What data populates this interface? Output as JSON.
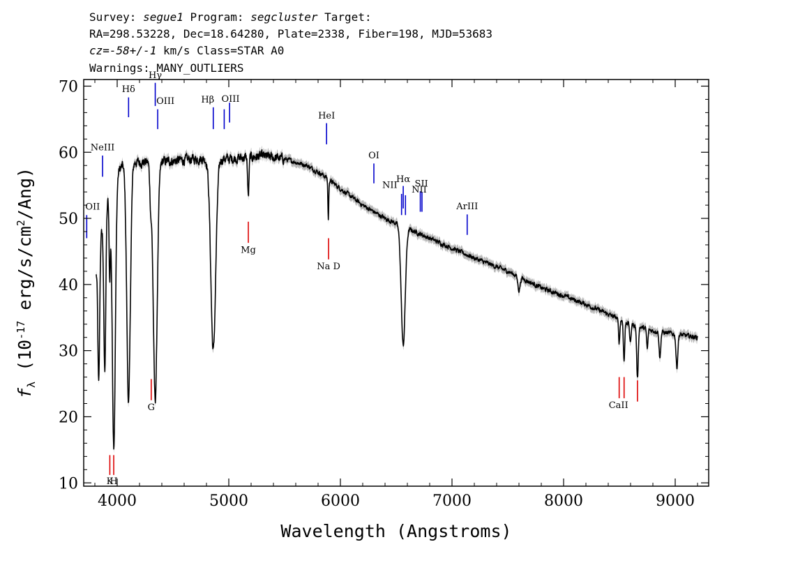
{
  "header": {
    "line1": {
      "survey_label": "Survey: ",
      "survey": "segue1",
      "program_label": " Program: ",
      "program": "segcluster",
      "target_label": " Target:"
    },
    "line2": "RA=298.53228, Dec=18.64280, Plate=2338, Fiber=198, MJD=53683",
    "line3": {
      "cz": "cz=-58+/-1",
      "rest": " km/s Class=STAR A0"
    },
    "line4": "Warnings: MANY_OUTLIERS"
  },
  "chart_data": {
    "type": "line",
    "xlabel": "Wavelength (Angstroms)",
    "ylabel_prefix": "f",
    "ylabel_sub": "λ",
    "ylabel_mid": " (10",
    "ylabel_exp1": "-17",
    "ylabel_tail": " erg/s/cm",
    "ylabel_exp2": "2",
    "ylabel_end": "/Ang)",
    "xlim": [
      3700,
      9300
    ],
    "ylim": [
      9.5,
      71
    ],
    "xticks": [
      4000,
      5000,
      6000,
      7000,
      8000,
      9000
    ],
    "yticks": [
      10,
      20,
      30,
      40,
      50,
      60,
      70
    ],
    "colors": {
      "spectrum": "#000000",
      "error_band": "#b8b8b8",
      "emission": "#0000cc",
      "absorption": "#dd0000"
    },
    "continuum": [
      [
        3800,
        40
      ],
      [
        3850,
        47
      ],
      [
        3900,
        52
      ],
      [
        3950,
        55
      ],
      [
        4000,
        57
      ],
      [
        4050,
        58
      ],
      [
        4150,
        58.5
      ],
      [
        4300,
        58.5
      ],
      [
        4500,
        58.7
      ],
      [
        4700,
        59
      ],
      [
        5000,
        59
      ],
      [
        5300,
        59.4
      ],
      [
        5500,
        59
      ],
      [
        5700,
        58
      ],
      [
        5850,
        56.5
      ],
      [
        6000,
        54.5
      ],
      [
        6200,
        52
      ],
      [
        6400,
        50
      ],
      [
        6600,
        48.5
      ],
      [
        6800,
        47
      ],
      [
        7000,
        45.5
      ],
      [
        7200,
        44
      ],
      [
        7500,
        42
      ],
      [
        7800,
        39.5
      ],
      [
        8000,
        38.3
      ],
      [
        8200,
        37
      ],
      [
        8400,
        35.5
      ],
      [
        8600,
        34
      ],
      [
        8800,
        33
      ],
      [
        9000,
        32.5
      ],
      [
        9200,
        32
      ]
    ],
    "absorption_features": [
      {
        "center": 3835,
        "depth": 20,
        "width": 8
      },
      {
        "center": 3889,
        "depth": 24,
        "width": 9
      },
      {
        "center": 3933,
        "depth": 12,
        "width": 6
      },
      {
        "center": 3970,
        "depth": 40,
        "width": 14
      },
      {
        "center": 4102,
        "depth": 36,
        "width": 16
      },
      {
        "center": 4300,
        "depth": 5,
        "width": 8
      },
      {
        "center": 4341,
        "depth": 36,
        "width": 18
      },
      {
        "center": 4861,
        "depth": 29,
        "width": 22
      },
      {
        "center": 5175,
        "depth": 6,
        "width": 6
      },
      {
        "center": 5892,
        "depth": 6,
        "width": 4
      },
      {
        "center": 6563,
        "depth": 18,
        "width": 18
      },
      {
        "center": 7600,
        "depth": 2,
        "width": 10
      },
      {
        "center": 8498,
        "depth": 3.5,
        "width": 6
      },
      {
        "center": 8542,
        "depth": 6,
        "width": 6
      },
      {
        "center": 8598,
        "depth": 3,
        "width": 6
      },
      {
        "center": 8662,
        "depth": 8,
        "width": 7
      },
      {
        "center": 8750,
        "depth": 3,
        "width": 6
      },
      {
        "center": 8863,
        "depth": 4,
        "width": 7
      },
      {
        "center": 9015,
        "depth": 5,
        "width": 8
      }
    ],
    "emission_lines": [
      {
        "label": "OII",
        "x": 3727,
        "y0": 47,
        "y1": 50.5,
        "label_y": 51.3,
        "anchor": "start",
        "dx": -2
      },
      {
        "label": "NeIII",
        "x": 3869,
        "y0": 56.3,
        "y1": 59.5,
        "label_y": 60.3,
        "anchor": "middle",
        "dx": 0
      },
      {
        "label": "Hδ",
        "x": 4102,
        "y0": 65.3,
        "y1": 68.3,
        "label_y": 69.1,
        "anchor": "middle",
        "dx": 0
      },
      {
        "label": "Hγ",
        "x": 4341,
        "y0": 67,
        "y1": 70.5,
        "label_y": 71.2,
        "anchor": "middle",
        "dx": 0
      },
      {
        "label": "OIII",
        "x": 4363,
        "y0": 63.5,
        "y1": 66.5,
        "label_y": 67.3,
        "anchor": "start",
        "dx": -2
      },
      {
        "label": "Hβ",
        "x": 4861,
        "y0": 63.5,
        "y1": 66.8,
        "label_y": 67.5,
        "anchor": "middle",
        "dx": -8
      },
      {
        "label": "OIII",
        "x": 4959,
        "y0": 63.5,
        "y1": 66.5,
        "label_y": 67.6,
        "anchor": "start",
        "dx": -4
      },
      {
        "label": "",
        "x": 5007,
        "y0": 64.5,
        "y1": 67.5,
        "label_y": 68,
        "anchor": "middle",
        "dx": 0
      },
      {
        "label": "HeI",
        "x": 5876,
        "y0": 61.2,
        "y1": 64.4,
        "label_y": 65.1,
        "anchor": "middle",
        "dx": 0
      },
      {
        "label": "OI",
        "x": 6300,
        "y0": 55.3,
        "y1": 58.3,
        "label_y": 59.1,
        "anchor": "middle",
        "dx": 0
      },
      {
        "label": "NII",
        "x": 6548,
        "y0": 50.5,
        "y1": 53.7,
        "label_y": 54.6,
        "anchor": "end",
        "dx": -6
      },
      {
        "label": "Hα",
        "x": 6563,
        "y0": 51.5,
        "y1": 54.9,
        "label_y": 55.5,
        "anchor": "middle",
        "dx": 0
      },
      {
        "label": "",
        "x": 6583,
        "y0": 50.5,
        "y1": 53.5,
        "label_y": 54,
        "anchor": "middle",
        "dx": 0
      },
      {
        "label": "SII",
        "x": 6716,
        "y0": 51,
        "y1": 54.1,
        "label_y": 54.8,
        "anchor": "start",
        "dx": -8
      },
      {
        "label": "NII",
        "x": 6731,
        "y0": 51,
        "y1": 54,
        "label_y": 53.9,
        "anchor": "middle",
        "dx": -4
      },
      {
        "label": "ArIII",
        "x": 7136,
        "y0": 47.5,
        "y1": 50.6,
        "label_y": 51.4,
        "anchor": "middle",
        "dx": 0
      }
    ],
    "absorption_lines": [
      {
        "label": "K",
        "x": 3934,
        "y0": 11.2,
        "y1": 14.2,
        "label_y": 9.8,
        "anchor": "middle",
        "dx": 0
      },
      {
        "label": "H",
        "x": 3969,
        "y0": 11.2,
        "y1": 14.2,
        "label_y": 9.8,
        "anchor": "middle",
        "dx": 0
      },
      {
        "label": "G",
        "x": 4305,
        "y0": 22.5,
        "y1": 25.7,
        "label_y": 21,
        "anchor": "middle",
        "dx": 0
      },
      {
        "label": "Mg",
        "x": 5175,
        "y0": 46.3,
        "y1": 49.5,
        "label_y": 44.8,
        "anchor": "middle",
        "dx": 0
      },
      {
        "label": "Na D",
        "x": 5894,
        "y0": 43.8,
        "y1": 47,
        "label_y": 42.3,
        "anchor": "middle",
        "dx": 0
      },
      {
        "label": "",
        "x": 8498,
        "y0": 22.8,
        "y1": 26,
        "label_y": 21,
        "anchor": "middle",
        "dx": 0
      },
      {
        "label": "CaII",
        "x": 8542,
        "y0": 22.8,
        "y1": 26,
        "label_y": 21.3,
        "anchor": "middle",
        "dx": -8
      },
      {
        "label": "",
        "x": 8662,
        "y0": 22.3,
        "y1": 25.5,
        "label_y": 21,
        "anchor": "middle",
        "dx": 0
      }
    ]
  }
}
